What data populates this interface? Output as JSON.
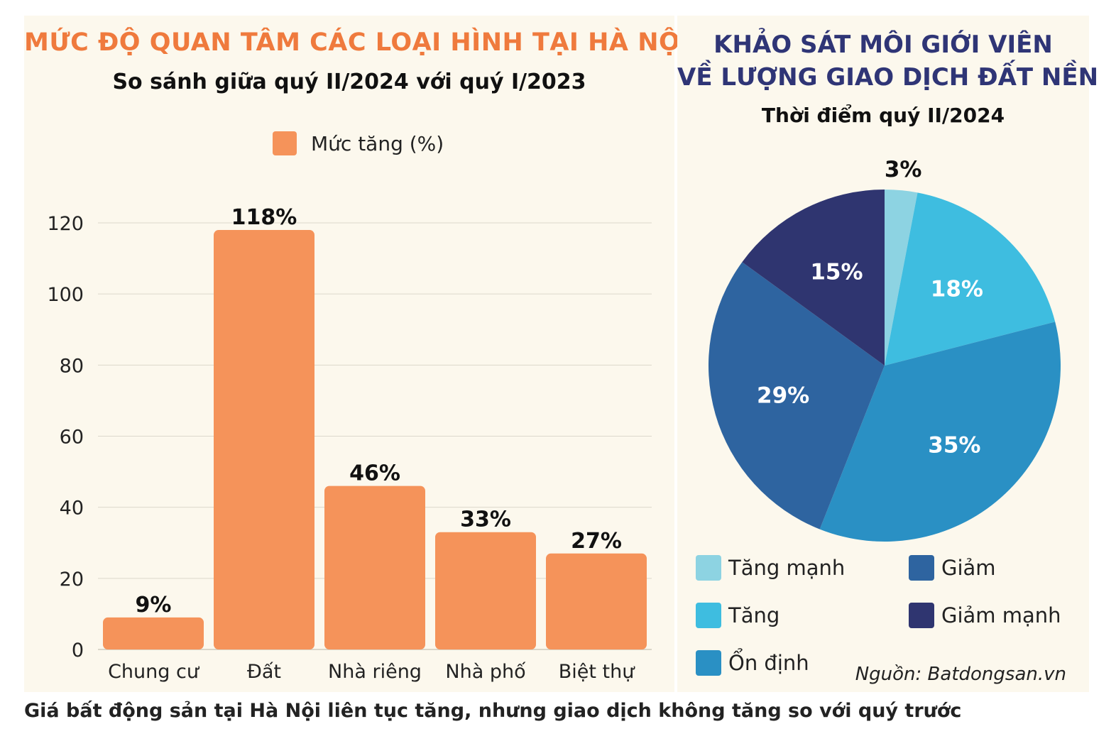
{
  "left": {
    "title": "MỨC ĐỘ QUAN TÂM CÁC LOẠI HÌNH TẠI HÀ NỘI",
    "subtitle": "So sánh giữa quý II/2024 với quý I/2023",
    "legend_label": "Mức tăng (%)"
  },
  "right": {
    "title_line1": "KHẢO SÁT MÔI GIỚI VIÊN",
    "title_line2": "VỀ LƯỢNG GIAO DỊCH ĐẤT NỀN",
    "subtitle": "Thời điểm quý II/2024",
    "source": "Nguồn: Batdongsan.vn"
  },
  "caption": "Giá bất động sản tại Hà Nội liên tục tăng, nhưng giao dịch không tăng so với quý trước",
  "chart_data": [
    {
      "type": "bar",
      "title": "MỨC ĐỘ QUAN TÂM CÁC LOẠI HÌNH TẠI HÀ NỘI",
      "subtitle": "So sánh giữa quý II/2024 với quý I/2023",
      "categories": [
        "Chung cư",
        "Đất",
        "Nhà riêng",
        "Nhà phố",
        "Biệt thự"
      ],
      "series": [
        {
          "name": "Mức tăng (%)",
          "values": [
            9,
            118,
            46,
            33,
            27
          ],
          "labels": [
            "9%",
            "118%",
            "46%",
            "33%",
            "27%"
          ]
        }
      ],
      "ylim": [
        0,
        120
      ],
      "yticks": [
        0,
        20,
        40,
        60,
        80,
        100,
        120
      ],
      "grid": true,
      "legend": "top-center",
      "color": "#f5935a"
    },
    {
      "type": "pie",
      "title": "KHẢO SÁT MÔI GIỚI VIÊN VỀ LƯỢNG GIAO DỊCH ĐẤT NỀN",
      "subtitle": "Thời điểm quý II/2024",
      "slices": [
        {
          "name": "Tăng mạnh",
          "value": 3,
          "label": "3%",
          "color": "#8dd3e2"
        },
        {
          "name": "Tăng",
          "value": 18,
          "label": "18%",
          "color": "#3ebde0"
        },
        {
          "name": "Ổn định",
          "value": 35,
          "label": "35%",
          "color": "#2a90c4"
        },
        {
          "name": "Giảm",
          "value": 29,
          "label": "29%",
          "color": "#2e64a0"
        },
        {
          "name": "Giảm mạnh",
          "value": 15,
          "label": "15%",
          "color": "#2f3570"
        }
      ],
      "legend": "bottom"
    }
  ]
}
